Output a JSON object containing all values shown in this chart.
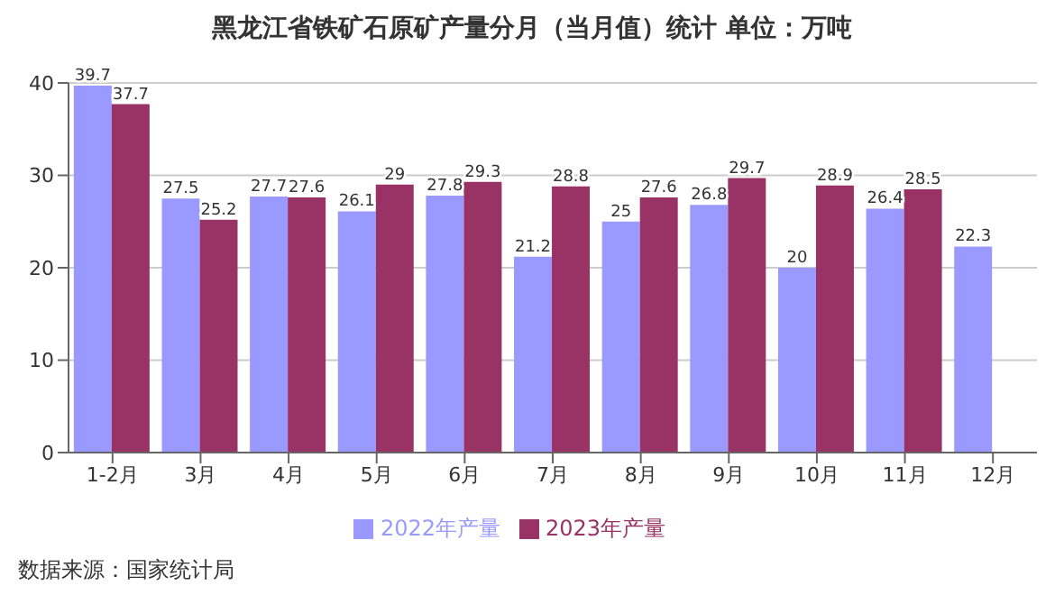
{
  "chart_data": {
    "type": "bar",
    "title": "黑龙江省铁矿石原矿产量分月（当月值）统计 单位：万吨",
    "categories": [
      "1-2月",
      "3月",
      "4月",
      "5月",
      "6月",
      "7月",
      "8月",
      "9月",
      "10月",
      "11月",
      "12月"
    ],
    "series": [
      {
        "name": "2022年产量",
        "color": "#9999ff",
        "values": [
          39.7,
          27.5,
          27.7,
          26.1,
          27.8,
          21.2,
          25,
          26.8,
          20,
          26.4,
          22.3
        ]
      },
      {
        "name": "2023年产量",
        "color": "#993366",
        "values": [
          37.7,
          25.2,
          27.6,
          29,
          29.3,
          28.8,
          27.6,
          29.7,
          28.9,
          28.5,
          null
        ]
      }
    ],
    "ylim": [
      0,
      40
    ],
    "yticks": [
      0,
      10,
      20,
      30,
      40
    ],
    "grid": "y",
    "legend": "bottom",
    "data_labels": true,
    "annotations": [
      "数据来源：国家统计局"
    ]
  }
}
